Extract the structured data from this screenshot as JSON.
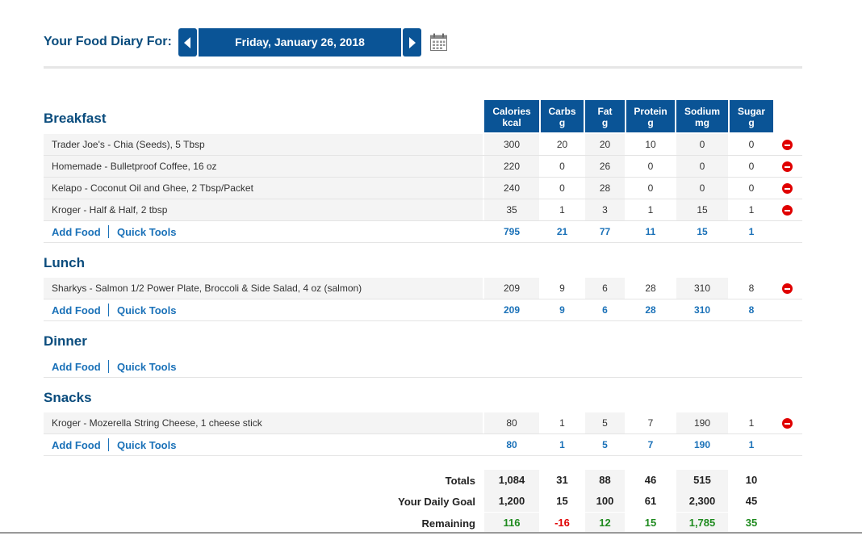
{
  "header": {
    "label": "Your Food Diary For:",
    "date": "Friday, January 26, 2018"
  },
  "columns": [
    {
      "name": "Calories",
      "unit": "kcal"
    },
    {
      "name": "Carbs",
      "unit": "g"
    },
    {
      "name": "Fat",
      "unit": "g"
    },
    {
      "name": "Protein",
      "unit": "g"
    },
    {
      "name": "Sodium",
      "unit": "mg"
    },
    {
      "name": "Sugar",
      "unit": "g"
    }
  ],
  "links": {
    "add_food": "Add Food",
    "quick_tools": "Quick Tools"
  },
  "meals": {
    "breakfast": {
      "title": "Breakfast",
      "items": [
        {
          "name": "Trader Joe's - Chia (Seeds), 5 Tbsp",
          "values": [
            "300",
            "20",
            "20",
            "10",
            "0",
            "0"
          ]
        },
        {
          "name": "Homemade - Bulletproof Coffee, 16 oz",
          "values": [
            "220",
            "0",
            "26",
            "0",
            "0",
            "0"
          ]
        },
        {
          "name": "Kelapo - Coconut Oil and Ghee, 2 Tbsp/Packet",
          "values": [
            "240",
            "0",
            "28",
            "0",
            "0",
            "0"
          ]
        },
        {
          "name": "Kroger - Half & Half, 2 tbsp",
          "values": [
            "35",
            "1",
            "3",
            "1",
            "15",
            "1"
          ]
        }
      ],
      "subtotal": [
        "795",
        "21",
        "77",
        "11",
        "15",
        "1"
      ]
    },
    "lunch": {
      "title": "Lunch",
      "items": [
        {
          "name": "Sharkys - Salmon 1/2 Power Plate, Broccoli & Side Salad, 4 oz (salmon)",
          "values": [
            "209",
            "9",
            "6",
            "28",
            "310",
            "8"
          ]
        }
      ],
      "subtotal": [
        "209",
        "9",
        "6",
        "28",
        "310",
        "8"
      ]
    },
    "dinner": {
      "title": "Dinner",
      "items": []
    },
    "snacks": {
      "title": "Snacks",
      "items": [
        {
          "name": "Kroger - Mozerella String Cheese, 1 cheese stick",
          "values": [
            "80",
            "1",
            "5",
            "7",
            "190",
            "1"
          ]
        }
      ],
      "subtotal": [
        "80",
        "1",
        "5",
        "7",
        "190",
        "1"
      ]
    }
  },
  "totals": {
    "totals_label": "Totals",
    "totals": [
      "1,084",
      "31",
      "88",
      "46",
      "515",
      "10"
    ],
    "goal_label": "Your Daily Goal",
    "goal": [
      "1,200",
      "15",
      "100",
      "61",
      "2,300",
      "45"
    ],
    "remaining_label": "Remaining",
    "remaining": [
      "116",
      "-16",
      "12",
      "15",
      "1,785",
      "35"
    ]
  },
  "colors": {
    "brand": "#0a5496",
    "link": "#1a71b8",
    "positive": "#1e8a1e",
    "negative": "#e00000"
  },
  "icons": {
    "prev": "chevron-left-icon",
    "next": "chevron-right-icon",
    "calendar": "calendar-icon",
    "delete": "remove-circle-icon"
  }
}
